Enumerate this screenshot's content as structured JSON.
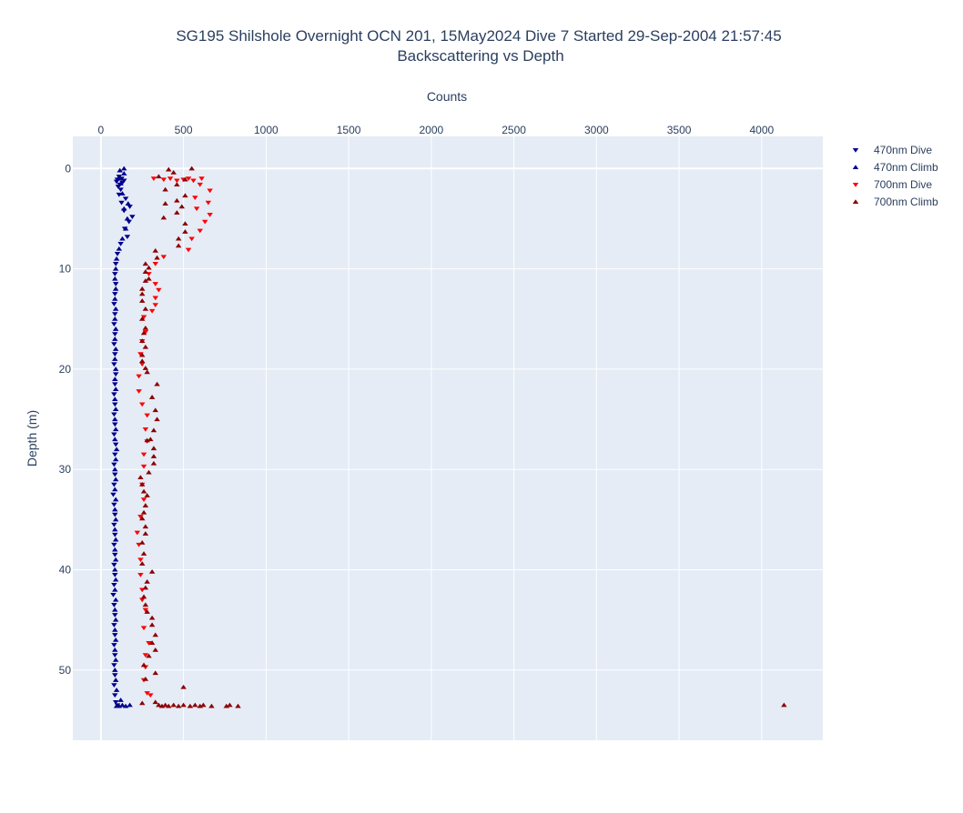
{
  "chart_data": {
    "type": "scatter",
    "title": "SG195 Shilshole Overnight OCN 201, 15May2024 Dive 7 Started 29-Sep-2004 21:57:45",
    "subtitle": "Backscattering vs Depth",
    "xlabel": "Counts",
    "ylabel": "Depth (m)",
    "xlim": [
      -170,
      4370
    ],
    "ylim": [
      57,
      -3.2
    ],
    "x_axis_position": "top",
    "y_reversed": true,
    "grid": true,
    "legend_position": "top-right",
    "x_ticks": [
      "0",
      "500",
      "1000",
      "1500",
      "2000",
      "2500",
      "3000",
      "3500",
      "4000"
    ],
    "y_ticks": [
      "0",
      "10",
      "20",
      "30",
      "40",
      "50"
    ],
    "series": [
      {
        "name": "470nm Dive",
        "color": "#00008b",
        "marker": "triangle-down",
        "points": [
          [
            110,
            0.8
          ],
          [
            125,
            1.0
          ],
          [
            100,
            1.1
          ],
          [
            140,
            1.2
          ],
          [
            95,
            1.3
          ],
          [
            130,
            1.4
          ],
          [
            115,
            1.6
          ],
          [
            105,
            1.8
          ],
          [
            120,
            2.1
          ],
          [
            110,
            2.6
          ],
          [
            150,
            3.0
          ],
          [
            125,
            3.4
          ],
          [
            175,
            3.8
          ],
          [
            140,
            4.2
          ],
          [
            190,
            4.8
          ],
          [
            170,
            5.3
          ],
          [
            145,
            6.0
          ],
          [
            160,
            6.8
          ],
          [
            120,
            7.5
          ],
          [
            100,
            8.5
          ],
          [
            90,
            9.5
          ],
          [
            85,
            10.5
          ],
          [
            90,
            11.5
          ],
          [
            85,
            12.5
          ],
          [
            80,
            13.5
          ],
          [
            85,
            14.5
          ],
          [
            80,
            15.5
          ],
          [
            85,
            16.5
          ],
          [
            80,
            17.5
          ],
          [
            85,
            18.5
          ],
          [
            80,
            19.5
          ],
          [
            90,
            20.5
          ],
          [
            85,
            21.5
          ],
          [
            80,
            22.5
          ],
          [
            85,
            23.5
          ],
          [
            80,
            24.5
          ],
          [
            85,
            25.5
          ],
          [
            80,
            26.5
          ],
          [
            90,
            27.5
          ],
          [
            85,
            28.5
          ],
          [
            80,
            29.5
          ],
          [
            85,
            30.5
          ],
          [
            80,
            31.5
          ],
          [
            75,
            32.5
          ],
          [
            80,
            33.5
          ],
          [
            85,
            34.5
          ],
          [
            80,
            35.5
          ],
          [
            85,
            36.5
          ],
          [
            80,
            37.5
          ],
          [
            85,
            38.5
          ],
          [
            80,
            39.5
          ],
          [
            85,
            40.5
          ],
          [
            80,
            41.5
          ],
          [
            75,
            42.5
          ],
          [
            80,
            43.5
          ],
          [
            85,
            44.5
          ],
          [
            80,
            45.5
          ],
          [
            85,
            46.5
          ],
          [
            80,
            47.5
          ],
          [
            85,
            48.5
          ],
          [
            80,
            49.5
          ],
          [
            85,
            50.5
          ],
          [
            80,
            51.5
          ],
          [
            85,
            52.5
          ],
          [
            90,
            53.2
          ],
          [
            100,
            53.5
          ]
        ]
      },
      {
        "name": "470nm Climb",
        "color": "#00008b",
        "marker": "triangle-up",
        "points": [
          [
            110,
            53.6
          ],
          [
            130,
            53.5
          ],
          [
            150,
            53.6
          ],
          [
            175,
            53.5
          ],
          [
            95,
            53.6
          ],
          [
            120,
            53.0
          ],
          [
            95,
            52.0
          ],
          [
            90,
            51.0
          ],
          [
            85,
            50.0
          ],
          [
            90,
            49.0
          ],
          [
            85,
            48.0
          ],
          [
            90,
            47.0
          ],
          [
            85,
            46.0
          ],
          [
            90,
            45.0
          ],
          [
            85,
            44.0
          ],
          [
            90,
            43.0
          ],
          [
            85,
            42.0
          ],
          [
            90,
            41.0
          ],
          [
            85,
            40.0
          ],
          [
            90,
            39.0
          ],
          [
            85,
            38.0
          ],
          [
            90,
            37.0
          ],
          [
            85,
            36.0
          ],
          [
            90,
            35.0
          ],
          [
            85,
            34.0
          ],
          [
            90,
            33.0
          ],
          [
            85,
            32.0
          ],
          [
            90,
            31.0
          ],
          [
            85,
            30.0
          ],
          [
            90,
            29.0
          ],
          [
            95,
            28.0
          ],
          [
            85,
            27.0
          ],
          [
            90,
            26.0
          ],
          [
            85,
            25.0
          ],
          [
            90,
            24.0
          ],
          [
            85,
            23.0
          ],
          [
            90,
            22.0
          ],
          [
            85,
            21.0
          ],
          [
            90,
            20.0
          ],
          [
            85,
            19.0
          ],
          [
            90,
            18.0
          ],
          [
            85,
            17.0
          ],
          [
            90,
            16.0
          ],
          [
            85,
            15.0
          ],
          [
            90,
            14.0
          ],
          [
            85,
            13.0
          ],
          [
            90,
            12.0
          ],
          [
            85,
            11.0
          ],
          [
            90,
            10.0
          ],
          [
            95,
            9.0
          ],
          [
            110,
            8.0
          ],
          [
            130,
            7.0
          ],
          [
            150,
            6.0
          ],
          [
            160,
            5.0
          ],
          [
            140,
            4.0
          ],
          [
            165,
            3.5
          ],
          [
            130,
            2.5
          ],
          [
            120,
            1.5
          ],
          [
            105,
            1.0
          ],
          [
            140,
            0.5
          ],
          [
            115,
            0.2
          ],
          [
            140,
            0.0
          ]
        ]
      },
      {
        "name": "700nm Dive",
        "color": "#ff0000",
        "marker": "triangle-down",
        "points": [
          [
            320,
            1.0
          ],
          [
            380,
            1.1
          ],
          [
            420,
            1.0
          ],
          [
            460,
            1.2
          ],
          [
            500,
            1.1
          ],
          [
            530,
            1.0
          ],
          [
            560,
            1.2
          ],
          [
            610,
            1.0
          ],
          [
            600,
            1.6
          ],
          [
            660,
            2.2
          ],
          [
            570,
            2.9
          ],
          [
            650,
            3.4
          ],
          [
            580,
            4.0
          ],
          [
            660,
            4.6
          ],
          [
            630,
            5.3
          ],
          [
            600,
            6.2
          ],
          [
            550,
            7.0
          ],
          [
            530,
            8.1
          ],
          [
            380,
            8.8
          ],
          [
            330,
            9.5
          ],
          [
            290,
            10.5
          ],
          [
            330,
            11.5
          ],
          [
            350,
            12.1
          ],
          [
            330,
            12.9
          ],
          [
            330,
            13.6
          ],
          [
            310,
            14.2
          ],
          [
            260,
            14.8
          ],
          [
            270,
            16.3
          ],
          [
            250,
            17.2
          ],
          [
            240,
            18.5
          ],
          [
            250,
            19.5
          ],
          [
            230,
            20.7
          ],
          [
            230,
            22.2
          ],
          [
            250,
            23.5
          ],
          [
            280,
            24.6
          ],
          [
            270,
            26.0
          ],
          [
            280,
            27.2
          ],
          [
            260,
            28.5
          ],
          [
            260,
            29.7
          ],
          [
            250,
            31.5
          ],
          [
            260,
            33.0
          ],
          [
            240,
            34.7
          ],
          [
            220,
            36.3
          ],
          [
            230,
            37.5
          ],
          [
            240,
            39.0
          ],
          [
            240,
            40.5
          ],
          [
            250,
            42.0
          ],
          [
            250,
            43.0
          ],
          [
            270,
            44.0
          ],
          [
            260,
            45.8
          ],
          [
            290,
            47.3
          ],
          [
            270,
            48.5
          ],
          [
            270,
            49.7
          ],
          [
            260,
            51.0
          ],
          [
            280,
            52.3
          ],
          [
            300,
            52.5
          ]
        ]
      },
      {
        "name": "700nm Climb",
        "color": "#8b0000",
        "marker": "triangle-up",
        "points": [
          [
            4135,
            53.5
          ],
          [
            830,
            53.6
          ],
          [
            780,
            53.5
          ],
          [
            760,
            53.6
          ],
          [
            670,
            53.6
          ],
          [
            620,
            53.5
          ],
          [
            600,
            53.6
          ],
          [
            570,
            53.5
          ],
          [
            540,
            53.6
          ],
          [
            500,
            53.5
          ],
          [
            470,
            53.6
          ],
          [
            440,
            53.5
          ],
          [
            410,
            53.6
          ],
          [
            390,
            53.5
          ],
          [
            370,
            53.6
          ],
          [
            350,
            53.5
          ],
          [
            330,
            53.2
          ],
          [
            250,
            53.3
          ],
          [
            500,
            51.7
          ],
          [
            270,
            50.9
          ],
          [
            330,
            50.3
          ],
          [
            260,
            49.5
          ],
          [
            290,
            48.6
          ],
          [
            330,
            48.0
          ],
          [
            310,
            47.3
          ],
          [
            330,
            46.5
          ],
          [
            310,
            45.5
          ],
          [
            310,
            44.8
          ],
          [
            280,
            44.2
          ],
          [
            270,
            43.5
          ],
          [
            260,
            42.7
          ],
          [
            270,
            41.8
          ],
          [
            280,
            41.2
          ],
          [
            310,
            40.2
          ],
          [
            250,
            39.4
          ],
          [
            260,
            38.4
          ],
          [
            250,
            37.3
          ],
          [
            270,
            36.4
          ],
          [
            270,
            35.7
          ],
          [
            250,
            34.9
          ],
          [
            260,
            34.3
          ],
          [
            270,
            33.6
          ],
          [
            280,
            32.6
          ],
          [
            260,
            32.2
          ],
          [
            250,
            31.5
          ],
          [
            240,
            30.8
          ],
          [
            290,
            30.3
          ],
          [
            320,
            29.4
          ],
          [
            320,
            28.7
          ],
          [
            320,
            27.9
          ],
          [
            300,
            27.0
          ],
          [
            280,
            27.1
          ],
          [
            320,
            26.1
          ],
          [
            340,
            25.0
          ],
          [
            330,
            24.1
          ],
          [
            310,
            22.8
          ],
          [
            340,
            21.5
          ],
          [
            280,
            20.3
          ],
          [
            270,
            19.9
          ],
          [
            250,
            19.2
          ],
          [
            250,
            18.6
          ],
          [
            270,
            17.8
          ],
          [
            250,
            17.2
          ],
          [
            260,
            16.4
          ],
          [
            270,
            15.9
          ],
          [
            250,
            15.0
          ],
          [
            270,
            14.0
          ],
          [
            250,
            13.2
          ],
          [
            250,
            12.5
          ],
          [
            250,
            12.0
          ],
          [
            270,
            11.2
          ],
          [
            290,
            11.0
          ],
          [
            270,
            10.3
          ],
          [
            290,
            9.9
          ],
          [
            270,
            9.5
          ],
          [
            340,
            8.9
          ],
          [
            330,
            8.2
          ],
          [
            470,
            7.7
          ],
          [
            470,
            7.0
          ],
          [
            510,
            6.3
          ],
          [
            510,
            5.5
          ],
          [
            380,
            4.9
          ],
          [
            460,
            4.4
          ],
          [
            490,
            3.8
          ],
          [
            390,
            3.5
          ],
          [
            460,
            3.2
          ],
          [
            510,
            2.7
          ],
          [
            390,
            2.1
          ],
          [
            460,
            1.6
          ],
          [
            510,
            1.1
          ],
          [
            350,
            0.8
          ],
          [
            440,
            0.4
          ],
          [
            410,
            0.1
          ],
          [
            550,
            0.0
          ]
        ]
      }
    ]
  }
}
